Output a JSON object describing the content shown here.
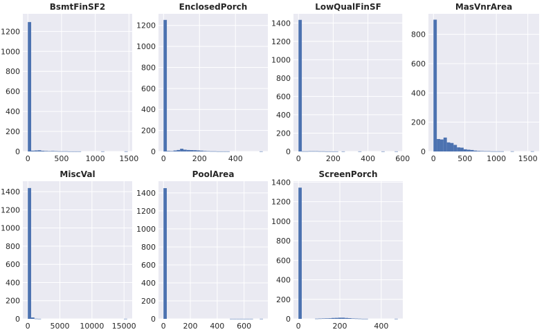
{
  "chart_data": [
    {
      "type": "bar",
      "title": "BsmtFinSF2",
      "xlim": [
        -74,
        1548
      ],
      "ylim": [
        0,
        1375
      ],
      "xticks": [
        0,
        500,
        1000,
        1500
      ],
      "yticks": [
        0,
        200,
        400,
        600,
        800,
        1000,
        1200
      ],
      "bin_start": 0,
      "bin_width": 49.4,
      "values": [
        1293,
        8,
        10,
        12,
        7,
        5,
        3,
        5,
        3,
        2,
        2,
        2,
        1,
        1,
        1,
        1,
        0,
        0,
        0,
        0,
        0,
        0,
        1,
        0,
        0,
        0,
        0,
        0,
        0,
        1
      ]
    },
    {
      "type": "bar",
      "title": "EnclosedPorch",
      "xlim": [
        -28,
        580
      ],
      "ylim": [
        0,
        1310
      ],
      "xticks": [
        0,
        200,
        400
      ],
      "yticks": [
        0,
        200,
        400,
        600,
        800,
        1000,
        1200
      ],
      "bin_start": 0,
      "bin_width": 18.4,
      "values": [
        1252,
        5,
        3,
        9,
        14,
        26,
        17,
        14,
        13,
        12,
        10,
        8,
        5,
        3,
        2,
        2,
        1,
        1,
        1,
        1,
        0,
        0,
        0,
        0,
        0,
        0,
        0,
        0,
        0,
        1
      ]
    },
    {
      "type": "bar",
      "title": "LowQualFinSF",
      "xlim": [
        -29,
        601
      ],
      "ylim": [
        0,
        1500
      ],
      "xticks": [
        0,
        200,
        400,
        600
      ],
      "yticks": [
        0,
        200,
        400,
        600,
        800,
        1000,
        1200,
        1400
      ],
      "bin_start": 0,
      "bin_width": 19.1,
      "values": [
        1434,
        2,
        2,
        3,
        3,
        3,
        2,
        2,
        1,
        1,
        1,
        1,
        0,
        1,
        0,
        0,
        0,
        0,
        1,
        0,
        0,
        0,
        0,
        0,
        0,
        1,
        0,
        0,
        0,
        1
      ]
    },
    {
      "type": "bar",
      "title": "MasVnrArea",
      "xlim": [
        -80,
        1680
      ],
      "ylim": [
        0,
        940
      ],
      "xticks": [
        0,
        500,
        1000,
        1500
      ],
      "yticks": [
        0,
        200,
        400,
        600,
        800
      ],
      "bin_start": 0,
      "bin_width": 53.3,
      "values": [
        900,
        85,
        82,
        95,
        62,
        58,
        45,
        28,
        26,
        15,
        12,
        10,
        6,
        4,
        3,
        2,
        2,
        1,
        1,
        1,
        1,
        0,
        0,
        1,
        0,
        0,
        0,
        0,
        0,
        1
      ]
    },
    {
      "type": "bar",
      "title": "MiscVal",
      "xlim": [
        -775,
        16275
      ],
      "ylim": [
        0,
        1515
      ],
      "xticks": [
        0,
        5000,
        10000,
        15000
      ],
      "yticks": [
        0,
        200,
        400,
        600,
        800,
        1000,
        1200,
        1400
      ],
      "bin_start": 0,
      "bin_width": 516.7,
      "values": [
        1440,
        15,
        2,
        1,
        0,
        0,
        0,
        0,
        0,
        0,
        0,
        0,
        0,
        0,
        0,
        0,
        0,
        0,
        0,
        0,
        0,
        0,
        0,
        0,
        0,
        0,
        0,
        0,
        0,
        1
      ]
    },
    {
      "type": "bar",
      "title": "PoolArea",
      "xlim": [
        -37,
        777
      ],
      "ylim": [
        0,
        1530
      ],
      "xticks": [
        0,
        200,
        400,
        600
      ],
      "yticks": [
        0,
        200,
        400,
        600,
        800,
        1000,
        1200,
        1400
      ],
      "bin_start": 0,
      "bin_width": 24.7,
      "values": [
        1453,
        0,
        0,
        0,
        0,
        0,
        0,
        0,
        0,
        0,
        0,
        0,
        0,
        0,
        0,
        0,
        0,
        0,
        0,
        0,
        1,
        1,
        1,
        1,
        1,
        1,
        1,
        0,
        0,
        1
      ]
    },
    {
      "type": "bar",
      "title": "ScreenPorch",
      "xlim": [
        -24,
        504
      ],
      "ylim": [
        0,
        1410
      ],
      "xticks": [
        0,
        200,
        400
      ],
      "yticks": [
        0,
        200,
        400,
        600,
        800,
        1000,
        1200,
        1400
      ],
      "bin_start": 0,
      "bin_width": 16.0,
      "values": [
        1344,
        0,
        0,
        0,
        0,
        2,
        3,
        4,
        5,
        6,
        9,
        10,
        12,
        12,
        9,
        7,
        4,
        3,
        2,
        1,
        1,
        0,
        0,
        0,
        0,
        0,
        0,
        0,
        0,
        1
      ]
    }
  ],
  "colors": {
    "background": "#eaeaf2",
    "grid": "#ffffff",
    "bar": "#4c72b0",
    "text": "#262626"
  }
}
